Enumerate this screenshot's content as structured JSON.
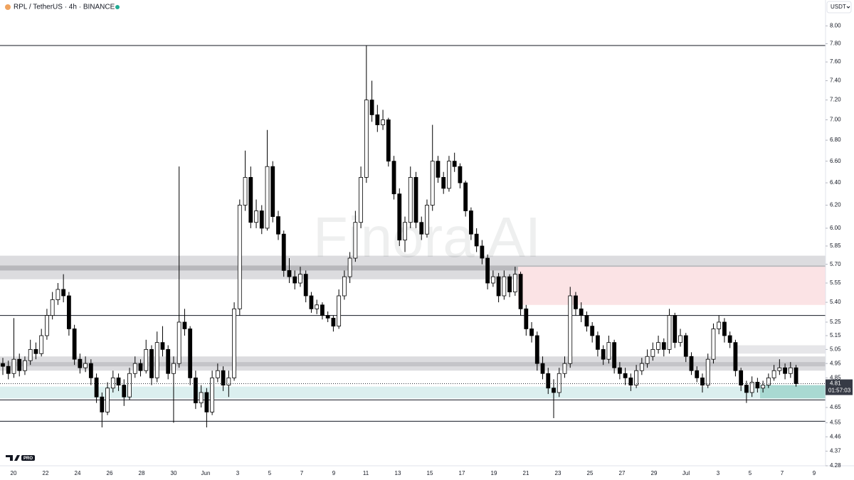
{
  "chart_data": {
    "type": "candlestick",
    "title": "RPL / TetherUS · 4h · BINANCE",
    "currency": "USDT",
    "watermark": "Finora AI",
    "badge": "PRO",
    "log_scale": true,
    "up_color": "#ffffff",
    "down_color": "#000000",
    "wick_color": "#000000",
    "ylim": [
      4.28,
      8.3
    ],
    "yticks": [
      {
        "value": 8.0,
        "label": "8.00"
      },
      {
        "value": 7.8,
        "label": "7.80"
      },
      {
        "value": 7.6,
        "label": "7.60"
      },
      {
        "value": 7.4,
        "label": "7.40"
      },
      {
        "value": 7.2,
        "label": "7.20"
      },
      {
        "value": 7.0,
        "label": "7.00"
      },
      {
        "value": 6.8,
        "label": "6.80"
      },
      {
        "value": 6.6,
        "label": "6.60"
      },
      {
        "value": 6.4,
        "label": "6.40"
      },
      {
        "value": 6.2,
        "label": "6.20"
      },
      {
        "value": 6.0,
        "label": "6.00"
      },
      5.85,
      {
        "value": 5.7,
        "label": "5.70"
      },
      5.55,
      {
        "value": 5.4,
        "label": "5.40"
      },
      5.25,
      5.15,
      5.05,
      4.95,
      4.85,
      4.65,
      4.55,
      4.46,
      4.37,
      4.28
    ],
    "x_labels": [
      "20",
      "22",
      "24",
      "26",
      "28",
      "30",
      "Jun",
      "3",
      "5",
      "7",
      "9",
      "11",
      "13",
      "15",
      "17",
      "19",
      "21",
      "23",
      "25",
      "27",
      "29",
      "Jul",
      "3",
      "5",
      "7",
      "9"
    ],
    "last_price_label": "4.81",
    "countdown": "01:57:03",
    "levels": [
      7.78,
      5.3,
      4.7,
      4.56
    ],
    "zones": [
      {
        "from": 5.58,
        "to": 5.77,
        "color": "#dcdcdf"
      },
      {
        "from": 5.65,
        "to": 5.69,
        "color": "#b8b8bc"
      },
      {
        "from": 4.9,
        "to": 5.0,
        "color": "#dcdcdf"
      },
      {
        "from": 4.93,
        "to": 4.96,
        "color": "#c4c4c8"
      },
      {
        "from": 5.02,
        "to": 5.08,
        "color": "#e6e6e9"
      },
      {
        "from": 4.71,
        "to": 4.79,
        "color": "#dbefef"
      },
      {
        "from": 4.71,
        "to": 4.8,
        "color": "#a9d9d2"
      },
      {
        "from": 5.38,
        "to": 5.68,
        "color": "#fbe3e5"
      }
    ],
    "candles": [
      [
        4.95,
        4.99,
        4.87,
        4.93
      ],
      [
        4.93,
        4.97,
        4.84,
        4.88
      ],
      [
        4.88,
        5.28,
        4.85,
        4.98
      ],
      [
        4.98,
        5.02,
        4.86,
        4.9
      ],
      [
        4.9,
        5.0,
        4.87,
        4.97
      ],
      [
        4.97,
        5.12,
        4.94,
        5.05
      ],
      [
        5.05,
        5.1,
        4.98,
        5.02
      ],
      [
        5.02,
        5.2,
        5.0,
        5.15
      ],
      [
        5.15,
        5.35,
        5.12,
        5.3
      ],
      [
        5.3,
        5.48,
        5.27,
        5.42
      ],
      [
        5.42,
        5.55,
        5.38,
        5.5
      ],
      [
        5.5,
        5.62,
        5.4,
        5.45
      ],
      [
        5.45,
        5.48,
        5.15,
        5.2
      ],
      [
        5.2,
        5.23,
        4.94,
        4.98
      ],
      [
        4.98,
        5.02,
        4.88,
        4.92
      ],
      [
        4.92,
        5.0,
        4.89,
        4.95
      ],
      [
        4.95,
        4.98,
        4.8,
        4.85
      ],
      [
        4.85,
        4.88,
        4.68,
        4.72
      ],
      [
        4.72,
        4.75,
        4.52,
        4.62
      ],
      [
        4.62,
        4.82,
        4.6,
        4.78
      ],
      [
        4.78,
        4.9,
        4.75,
        4.85
      ],
      [
        4.85,
        4.88,
        4.76,
        4.8
      ],
      [
        4.8,
        4.84,
        4.66,
        4.72
      ],
      [
        4.72,
        4.92,
        4.7,
        4.88
      ],
      [
        4.88,
        5.0,
        4.85,
        4.95
      ],
      [
        4.95,
        4.98,
        4.86,
        4.9
      ],
      [
        4.9,
        5.12,
        4.88,
        5.05
      ],
      [
        5.05,
        5.08,
        4.8,
        4.85
      ],
      [
        4.85,
        5.18,
        4.82,
        5.1
      ],
      [
        5.1,
        5.22,
        5.0,
        5.05
      ],
      [
        5.05,
        5.08,
        4.84,
        4.88
      ],
      [
        4.88,
        5.0,
        4.55,
        4.95
      ],
      [
        4.95,
        6.55,
        4.92,
        5.25
      ],
      [
        5.25,
        5.35,
        5.15,
        5.2
      ],
      [
        5.2,
        5.22,
        4.8,
        4.85
      ],
      [
        4.85,
        4.9,
        4.64,
        4.68
      ],
      [
        4.68,
        4.8,
        4.65,
        4.75
      ],
      [
        4.75,
        4.78,
        4.52,
        4.62
      ],
      [
        4.62,
        4.9,
        4.6,
        4.85
      ],
      [
        4.85,
        4.95,
        4.82,
        4.9
      ],
      [
        4.9,
        4.93,
        4.76,
        4.8
      ],
      [
        4.8,
        4.9,
        4.72,
        4.85
      ],
      [
        4.85,
        5.4,
        4.83,
        5.35
      ],
      [
        5.35,
        6.25,
        5.3,
        6.2
      ],
      [
        6.2,
        6.7,
        6.15,
        6.45
      ],
      [
        6.45,
        6.55,
        6.0,
        6.05
      ],
      [
        6.05,
        6.25,
        6.0,
        6.15
      ],
      [
        6.15,
        6.2,
        5.95,
        6.0
      ],
      [
        6.0,
        6.9,
        5.98,
        6.55
      ],
      [
        6.55,
        6.6,
        6.05,
        6.1
      ],
      [
        6.1,
        6.15,
        5.9,
        5.95
      ],
      [
        5.95,
        5.98,
        5.6,
        5.65
      ],
      [
        5.65,
        5.75,
        5.55,
        5.6
      ],
      [
        5.6,
        5.65,
        5.5,
        5.55
      ],
      [
        5.55,
        5.68,
        5.52,
        5.62
      ],
      [
        5.62,
        5.65,
        5.4,
        5.45
      ],
      [
        5.45,
        5.48,
        5.32,
        5.35
      ],
      [
        5.35,
        5.42,
        5.31,
        5.38
      ],
      [
        5.38,
        5.4,
        5.27,
        5.3
      ],
      [
        5.3,
        5.33,
        5.25,
        5.28
      ],
      [
        5.28,
        5.3,
        5.18,
        5.22
      ],
      [
        5.22,
        5.5,
        5.2,
        5.45
      ],
      [
        5.45,
        5.65,
        5.42,
        5.6
      ],
      [
        5.6,
        5.8,
        5.55,
        5.75
      ],
      [
        5.75,
        6.15,
        5.72,
        6.05
      ],
      [
        6.05,
        6.55,
        6.0,
        6.45
      ],
      [
        6.45,
        7.78,
        6.4,
        7.2
      ],
      [
        7.2,
        7.4,
        6.98,
        7.05
      ],
      [
        7.05,
        7.15,
        6.88,
        6.95
      ],
      [
        6.95,
        7.1,
        6.9,
        7.0
      ],
      [
        7.0,
        7.02,
        6.55,
        6.6
      ],
      [
        6.6,
        6.65,
        6.25,
        6.3
      ],
      [
        6.3,
        6.35,
        5.85,
        5.9
      ],
      [
        5.9,
        6.1,
        5.8,
        6.05
      ],
      [
        6.05,
        6.55,
        6.0,
        6.45
      ],
      [
        6.45,
        6.5,
        6.0,
        6.05
      ],
      [
        6.05,
        6.1,
        5.9,
        5.95
      ],
      [
        5.95,
        6.25,
        5.92,
        6.2
      ],
      [
        6.2,
        6.95,
        6.15,
        6.6
      ],
      [
        6.6,
        6.65,
        6.4,
        6.45
      ],
      [
        6.45,
        6.5,
        6.3,
        6.35
      ],
      [
        6.35,
        6.65,
        6.32,
        6.6
      ],
      [
        6.6,
        6.68,
        6.5,
        6.55
      ],
      [
        6.55,
        6.58,
        6.35,
        6.4
      ],
      [
        6.4,
        6.42,
        6.1,
        6.15
      ],
      [
        6.15,
        6.18,
        5.9,
        5.95
      ],
      [
        5.95,
        6.0,
        5.8,
        5.85
      ],
      [
        5.85,
        5.9,
        5.7,
        5.75
      ],
      [
        5.75,
        5.78,
        5.5,
        5.55
      ],
      [
        5.55,
        5.65,
        5.52,
        5.6
      ],
      [
        5.6,
        5.63,
        5.4,
        5.45
      ],
      [
        5.45,
        5.65,
        5.42,
        5.6
      ],
      [
        5.6,
        5.62,
        5.44,
        5.48
      ],
      [
        5.48,
        5.68,
        5.45,
        5.62
      ],
      [
        5.62,
        5.64,
        5.3,
        5.35
      ],
      [
        5.35,
        5.38,
        5.15,
        5.2
      ],
      [
        5.2,
        5.25,
        5.1,
        5.15
      ],
      [
        5.15,
        5.18,
        4.9,
        4.95
      ],
      [
        4.95,
        5.0,
        4.84,
        4.88
      ],
      [
        4.88,
        4.92,
        4.74,
        4.78
      ],
      [
        4.78,
        4.84,
        4.58,
        4.75
      ],
      [
        4.75,
        4.92,
        4.72,
        4.88
      ],
      [
        4.88,
        5.0,
        4.85,
        4.95
      ],
      [
        4.95,
        5.52,
        4.92,
        5.45
      ],
      [
        5.45,
        5.48,
        5.3,
        5.35
      ],
      [
        5.35,
        5.4,
        5.25,
        5.3
      ],
      [
        5.3,
        5.33,
        5.18,
        5.22
      ],
      [
        5.22,
        5.25,
        5.1,
        5.15
      ],
      [
        5.15,
        5.18,
        5.0,
        5.05
      ],
      [
        5.05,
        5.08,
        4.94,
        4.98
      ],
      [
        4.98,
        5.15,
        4.95,
        5.1
      ],
      [
        5.1,
        5.12,
        4.88,
        4.92
      ],
      [
        4.92,
        4.96,
        4.84,
        4.88
      ],
      [
        4.88,
        4.92,
        4.8,
        4.85
      ],
      [
        4.85,
        4.88,
        4.76,
        4.8
      ],
      [
        4.8,
        4.94,
        4.78,
        4.9
      ],
      [
        4.9,
        4.99,
        4.87,
        4.95
      ],
      [
        4.95,
        5.05,
        4.92,
        5.0
      ],
      [
        5.0,
        5.1,
        4.97,
        5.05
      ],
      [
        5.05,
        5.15,
        5.02,
        5.1
      ],
      [
        5.1,
        5.13,
        5.0,
        5.05
      ],
      [
        5.05,
        5.35,
        5.02,
        5.3
      ],
      [
        5.3,
        5.32,
        5.06,
        5.1
      ],
      [
        5.1,
        5.2,
        5.07,
        5.15
      ],
      [
        5.15,
        5.17,
        4.96,
        5.0
      ],
      [
        5.0,
        5.03,
        4.87,
        4.9
      ],
      [
        4.9,
        4.93,
        4.82,
        4.85
      ],
      [
        4.85,
        4.88,
        4.75,
        4.8
      ],
      [
        4.8,
        5.02,
        4.78,
        4.98
      ],
      [
        4.98,
        5.24,
        4.95,
        5.2
      ],
      [
        5.2,
        5.3,
        5.16,
        5.25
      ],
      [
        5.25,
        5.28,
        5.1,
        5.15
      ],
      [
        5.15,
        5.18,
        5.06,
        5.1
      ],
      [
        5.1,
        5.12,
        4.86,
        4.9
      ],
      [
        4.9,
        4.92,
        4.76,
        4.8
      ],
      [
        4.8,
        4.83,
        4.68,
        4.75
      ],
      [
        4.75,
        4.86,
        4.72,
        4.82
      ],
      [
        4.82,
        4.85,
        4.75,
        4.78
      ],
      [
        4.78,
        4.83,
        4.75,
        4.8
      ],
      [
        4.8,
        4.88,
        4.78,
        4.85
      ],
      [
        4.85,
        4.94,
        4.83,
        4.9
      ],
      [
        4.9,
        4.98,
        4.87,
        4.92
      ],
      [
        4.92,
        4.95,
        4.84,
        4.88
      ],
      [
        4.88,
        4.96,
        4.85,
        4.92
      ],
      [
        4.92,
        4.94,
        4.79,
        4.81
      ]
    ]
  }
}
